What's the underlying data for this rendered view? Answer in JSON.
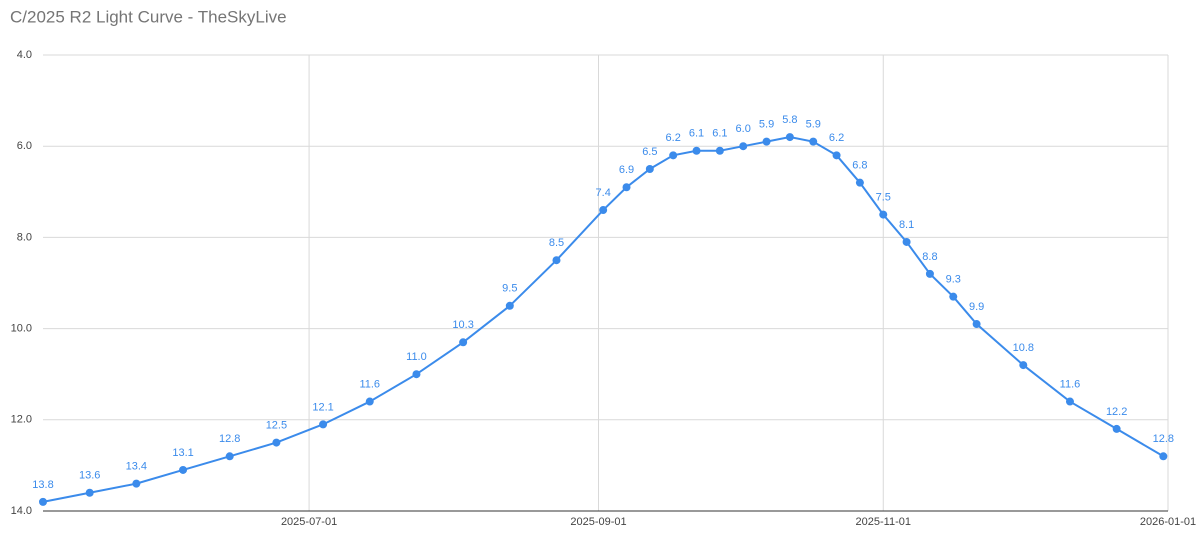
{
  "chart_data": {
    "type": "line",
    "title": "C/2025 R2 Light Curve - TheSkyLive",
    "x": [
      "2025-05-05",
      "2025-05-15",
      "2025-05-25",
      "2025-06-04",
      "2025-06-14",
      "2025-06-24",
      "2025-07-04",
      "2025-07-14",
      "2025-07-24",
      "2025-08-03",
      "2025-08-13",
      "2025-08-23",
      "2025-09-02",
      "2025-09-07",
      "2025-09-12",
      "2025-09-17",
      "2025-09-22",
      "2025-09-27",
      "2025-10-02",
      "2025-10-07",
      "2025-10-12",
      "2025-10-17",
      "2025-10-22",
      "2025-10-27",
      "2025-11-01",
      "2025-11-06",
      "2025-11-11",
      "2025-11-16",
      "2025-11-21",
      "2025-12-01",
      "2025-12-11",
      "2025-12-21",
      "2025-12-31"
    ],
    "series": [
      {
        "color": "#3b8beb",
        "values": [
          13.8,
          13.6,
          13.4,
          13.1,
          12.8,
          12.5,
          12.1,
          11.6,
          11.0,
          10.3,
          9.5,
          8.5,
          7.4,
          6.9,
          6.5,
          6.2,
          6.1,
          6.1,
          6.0,
          5.9,
          5.8,
          5.9,
          6.2,
          6.8,
          7.5,
          8.1,
          8.8,
          9.3,
          9.9,
          10.8,
          11.6,
          12.2,
          12.8
        ],
        "value_labels": [
          "13.8",
          "13.6",
          "13.4",
          "13.1",
          "12.8",
          "12.5",
          "12.1",
          "11.6",
          "11.0",
          "10.3",
          "9.5",
          "8.5",
          "7.4",
          "6.9",
          "6.5",
          "6.2",
          "6.1",
          "6.1",
          "6.0",
          "5.9",
          "5.8",
          "5.9",
          "6.2",
          "6.8",
          "7.5",
          "8.1",
          "8.8",
          "9.3",
          "9.9",
          "10.8",
          "11.6",
          "12.2",
          "12.8"
        ]
      }
    ],
    "xlim": [
      "2025-05-05",
      "2026-01-01"
    ],
    "xticks": [
      "2025-07-01",
      "2025-09-01",
      "2025-11-01",
      "2026-01-01"
    ],
    "ylim": [
      14,
      4
    ],
    "yticks": [
      {
        "value": 4,
        "label": "4.0"
      },
      {
        "value": 6,
        "label": "6.0"
      },
      {
        "value": 8,
        "label": "8.0"
      },
      {
        "value": 10,
        "label": "10.0"
      },
      {
        "value": 12,
        "label": "12.0"
      },
      {
        "value": 14,
        "label": "14.0"
      }
    ],
    "grid": true
  }
}
